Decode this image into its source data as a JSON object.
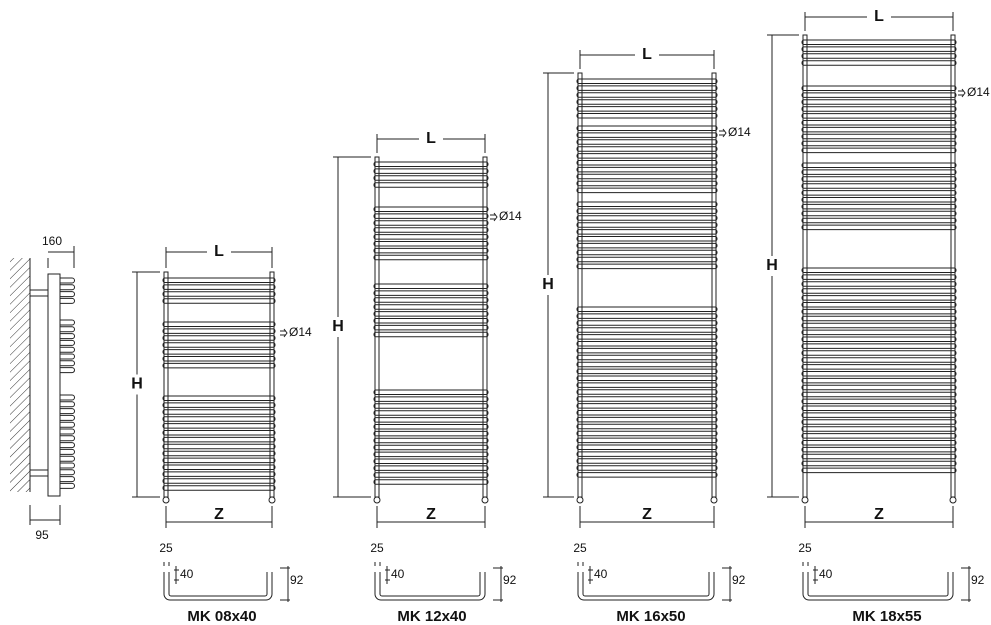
{
  "side_view": {
    "width_label": "160",
    "depth_label": "95"
  },
  "models": [
    {
      "name": "MK 08x40",
      "width_label": "L",
      "height_label": "H",
      "spacing_label": "Z",
      "tube_label": "Ø14",
      "detail": {
        "offset_label": "25",
        "inset_label": "40",
        "depth_label": "92"
      }
    },
    {
      "name": "MK 12x40",
      "width_label": "L",
      "height_label": "H",
      "spacing_label": "Z",
      "tube_label": "Ø14",
      "detail": {
        "offset_label": "25",
        "inset_label": "40",
        "depth_label": "92"
      }
    },
    {
      "name": "MK 16x50",
      "width_label": "L",
      "height_label": "H",
      "spacing_label": "Z",
      "tube_label": "Ø14",
      "detail": {
        "offset_label": "25",
        "inset_label": "40",
        "depth_label": "92"
      }
    },
    {
      "name": "MK 18x55",
      "width_label": "L",
      "height_label": "H",
      "spacing_label": "Z",
      "tube_label": "Ø14",
      "detail": {
        "offset_label": "25",
        "inset_label": "40",
        "depth_label": "92"
      }
    }
  ]
}
